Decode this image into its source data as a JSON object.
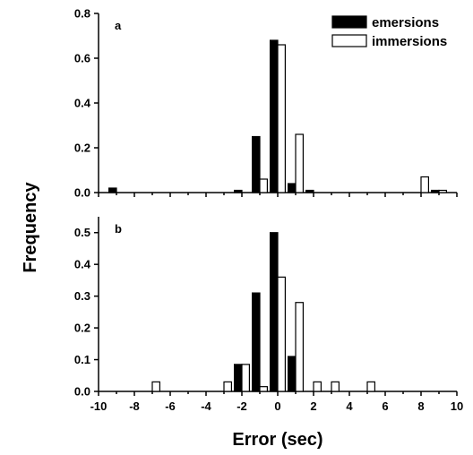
{
  "chart_data": {
    "type": "bar",
    "ylabel": "Frequency",
    "xlabel": "Error (sec)",
    "xlim": [
      -10,
      10
    ],
    "xticks": [
      -10,
      -8,
      -6,
      -4,
      -2,
      0,
      2,
      4,
      6,
      8,
      10
    ],
    "bin_width": 1,
    "legend": {
      "placement": "top-right",
      "entries": [
        {
          "name": "emersions",
          "color": "#000000",
          "fill": "solid"
        },
        {
          "name": "immersions",
          "color": "#ffffff",
          "fill": "open"
        }
      ]
    },
    "panels": [
      {
        "label": "a",
        "ylim": [
          0,
          0.8
        ],
        "yticks": [
          "0.0",
          "0.2",
          "0.4",
          "0.6",
          "0.8"
        ],
        "series": [
          {
            "name": "emersions",
            "x": [
              -9,
              -2,
              -1,
              0,
              1,
              2,
              8,
              9
            ],
            "values": [
              0.02,
              0.01,
              0.25,
              0.68,
              0.04,
              0.01,
              0.0,
              0.01
            ]
          },
          {
            "name": "immersions",
            "x": [
              -9,
              -2,
              -1,
              0,
              1,
              2,
              8,
              9
            ],
            "values": [
              0.0,
              0.0,
              0.06,
              0.66,
              0.26,
              0.0,
              0.07,
              0.01
            ]
          }
        ]
      },
      {
        "label": "b",
        "ylim": [
          0,
          0.55
        ],
        "yticks": [
          "0.0",
          "0.1",
          "0.2",
          "0.3",
          "0.4",
          "0.5"
        ],
        "series": [
          {
            "name": "emersions",
            "x": [
              -7,
              -3,
              -2,
              -1,
              0,
              1,
              2,
              3,
              5
            ],
            "values": [
              0.0,
              0.0,
              0.085,
              0.31,
              0.5,
              0.11,
              0.0,
              0.0,
              0.0
            ]
          },
          {
            "name": "immersions",
            "x": [
              -7,
              -3,
              -2,
              -1,
              0,
              1,
              2,
              3,
              5
            ],
            "values": [
              0.03,
              0.03,
              0.085,
              0.015,
              0.36,
              0.28,
              0.03,
              0.03,
              0.03
            ]
          }
        ]
      }
    ]
  }
}
